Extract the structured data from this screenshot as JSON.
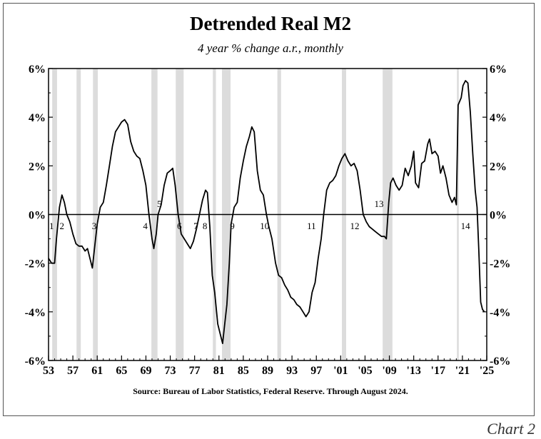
{
  "chart_data": {
    "type": "line",
    "title": "Detrended Real M2",
    "subtitle": "4 year % change a.r., monthly",
    "source": "Source: Bureau of Labor Statistics, Federal Reserve. Through August 2024.",
    "caption": "Chart 2",
    "xlim": [
      1953,
      2025
    ],
    "ylim": [
      -6,
      6
    ],
    "y_ticks": [
      6,
      4,
      2,
      0,
      -2,
      -4,
      -6
    ],
    "y_tick_labels": [
      "6%",
      "4%",
      "2%",
      "0%",
      "-2%",
      "-4%",
      "-6%"
    ],
    "x_ticks": [
      1953,
      1957,
      1961,
      1965,
      1969,
      1973,
      1977,
      1981,
      1985,
      1989,
      1993,
      1997,
      2001,
      2005,
      2009,
      2013,
      2017,
      2021,
      2025
    ],
    "x_tick_labels": [
      "53",
      "57",
      "61",
      "65",
      "69",
      "73",
      "77",
      "81",
      "85",
      "89",
      "93",
      "97",
      "'01",
      "'05",
      "'09",
      "'13",
      "'17",
      "'21",
      "'25"
    ],
    "recessions": [
      {
        "start": 1953.6,
        "end": 1954.4
      },
      {
        "start": 1957.6,
        "end": 1958.3
      },
      {
        "start": 1960.3,
        "end": 1961.1
      },
      {
        "start": 1969.9,
        "end": 1970.9
      },
      {
        "start": 1973.9,
        "end": 1975.2
      },
      {
        "start": 1980.0,
        "end": 1980.5
      },
      {
        "start": 1981.5,
        "end": 1982.9
      },
      {
        "start": 1990.6,
        "end": 1991.2
      },
      {
        "start": 2001.2,
        "end": 2001.9
      },
      {
        "start": 2007.9,
        "end": 2009.5
      },
      {
        "start": 2020.1,
        "end": 2020.4
      }
    ],
    "crossing_labels": [
      {
        "label": "1",
        "x": 1953.5,
        "y": -0.25
      },
      {
        "label": "2",
        "x": 1955.2,
        "y": -0.25
      },
      {
        "label": "3",
        "x": 1960.5,
        "y": -0.25
      },
      {
        "label": "4",
        "x": 1968.9,
        "y": -0.25
      },
      {
        "label": "5",
        "x": 1971.2,
        "y": 0.25
      },
      {
        "label": "6",
        "x": 1974.5,
        "y": -0.25
      },
      {
        "label": "7",
        "x": 1977.2,
        "y": -0.25
      },
      {
        "label": "8",
        "x": 1978.7,
        "y": -0.25
      },
      {
        "label": "9",
        "x": 1983.2,
        "y": -0.25
      },
      {
        "label": "10",
        "x": 1988.5,
        "y": -0.25
      },
      {
        "label": "11",
        "x": 1996.2,
        "y": -0.25
      },
      {
        "label": "12",
        "x": 2003.3,
        "y": -0.25
      },
      {
        "label": "13",
        "x": 2007.3,
        "y": 0.25
      },
      {
        "label": "14",
        "x": 2021.5,
        "y": -0.25
      }
    ],
    "series": [
      {
        "name": "Detrended Real M2",
        "points": [
          [
            1953.0,
            -1.8
          ],
          [
            1953.5,
            -2.0
          ],
          [
            1954.0,
            -2.0
          ],
          [
            1954.3,
            -1.0
          ],
          [
            1954.8,
            0.3
          ],
          [
            1955.2,
            0.8
          ],
          [
            1955.6,
            0.5
          ],
          [
            1956.0,
            0.0
          ],
          [
            1956.5,
            -0.3
          ],
          [
            1957.0,
            -0.8
          ],
          [
            1957.5,
            -1.2
          ],
          [
            1958.0,
            -1.3
          ],
          [
            1958.5,
            -1.3
          ],
          [
            1959.0,
            -1.5
          ],
          [
            1959.4,
            -1.4
          ],
          [
            1959.8,
            -1.8
          ],
          [
            1960.2,
            -2.2
          ],
          [
            1960.5,
            -1.5
          ],
          [
            1961.0,
            -0.4
          ],
          [
            1961.5,
            0.3
          ],
          [
            1962.0,
            0.5
          ],
          [
            1962.5,
            1.2
          ],
          [
            1963.0,
            2.0
          ],
          [
            1963.5,
            2.8
          ],
          [
            1964.0,
            3.4
          ],
          [
            1964.5,
            3.6
          ],
          [
            1965.0,
            3.8
          ],
          [
            1965.5,
            3.9
          ],
          [
            1966.0,
            3.7
          ],
          [
            1966.5,
            3.0
          ],
          [
            1967.0,
            2.6
          ],
          [
            1967.5,
            2.4
          ],
          [
            1968.0,
            2.3
          ],
          [
            1968.5,
            1.8
          ],
          [
            1969.0,
            1.2
          ],
          [
            1969.5,
            0.0
          ],
          [
            1970.0,
            -1.0
          ],
          [
            1970.3,
            -1.4
          ],
          [
            1970.7,
            -0.8
          ],
          [
            1971.0,
            0.0
          ],
          [
            1971.5,
            0.4
          ],
          [
            1972.0,
            1.2
          ],
          [
            1972.5,
            1.7
          ],
          [
            1973.0,
            1.8
          ],
          [
            1973.4,
            1.9
          ],
          [
            1973.8,
            1.2
          ],
          [
            1974.3,
            0.0
          ],
          [
            1974.8,
            -0.8
          ],
          [
            1975.3,
            -1.0
          ],
          [
            1975.8,
            -1.2
          ],
          [
            1976.3,
            -1.4
          ],
          [
            1976.8,
            -1.1
          ],
          [
            1977.3,
            -0.6
          ],
          [
            1977.8,
            0.0
          ],
          [
            1978.3,
            0.6
          ],
          [
            1978.8,
            1.0
          ],
          [
            1979.1,
            0.9
          ],
          [
            1979.5,
            -0.5
          ],
          [
            1979.9,
            -2.5
          ],
          [
            1980.3,
            -3.2
          ],
          [
            1980.8,
            -4.5
          ],
          [
            1981.3,
            -5.0
          ],
          [
            1981.6,
            -5.3
          ],
          [
            1981.9,
            -4.6
          ],
          [
            1982.3,
            -3.7
          ],
          [
            1982.7,
            -2.0
          ],
          [
            1983.0,
            -0.4
          ],
          [
            1983.5,
            0.3
          ],
          [
            1984.0,
            0.5
          ],
          [
            1984.5,
            1.5
          ],
          [
            1985.0,
            2.2
          ],
          [
            1985.5,
            2.8
          ],
          [
            1986.0,
            3.2
          ],
          [
            1986.4,
            3.6
          ],
          [
            1986.8,
            3.4
          ],
          [
            1987.3,
            1.8
          ],
          [
            1987.8,
            1.0
          ],
          [
            1988.3,
            0.8
          ],
          [
            1988.8,
            0.0
          ],
          [
            1989.2,
            -0.5
          ],
          [
            1989.7,
            -1.0
          ],
          [
            1990.3,
            -2.0
          ],
          [
            1990.8,
            -2.5
          ],
          [
            1991.3,
            -2.6
          ],
          [
            1991.8,
            -2.9
          ],
          [
            1992.3,
            -3.1
          ],
          [
            1992.8,
            -3.4
          ],
          [
            1993.3,
            -3.5
          ],
          [
            1993.8,
            -3.7
          ],
          [
            1994.3,
            -3.8
          ],
          [
            1994.8,
            -4.0
          ],
          [
            1995.3,
            -4.2
          ],
          [
            1995.8,
            -4.0
          ],
          [
            1996.3,
            -3.2
          ],
          [
            1996.8,
            -2.8
          ],
          [
            1997.3,
            -1.8
          ],
          [
            1997.8,
            -1.0
          ],
          [
            1998.2,
            0.0
          ],
          [
            1998.7,
            1.0
          ],
          [
            1999.2,
            1.3
          ],
          [
            1999.7,
            1.4
          ],
          [
            2000.2,
            1.6
          ],
          [
            2000.7,
            2.0
          ],
          [
            2001.2,
            2.3
          ],
          [
            2001.7,
            2.5
          ],
          [
            2002.2,
            2.2
          ],
          [
            2002.7,
            2.0
          ],
          [
            2003.2,
            2.1
          ],
          [
            2003.7,
            1.8
          ],
          [
            2004.2,
            1.0
          ],
          [
            2004.7,
            0.0
          ],
          [
            2005.2,
            -0.3
          ],
          [
            2005.7,
            -0.5
          ],
          [
            2006.2,
            -0.6
          ],
          [
            2006.7,
            -0.7
          ],
          [
            2007.2,
            -0.8
          ],
          [
            2007.7,
            -0.9
          ],
          [
            2008.2,
            -0.9
          ],
          [
            2008.5,
            -1.0
          ],
          [
            2008.9,
            0.5
          ],
          [
            2009.2,
            1.3
          ],
          [
            2009.6,
            1.5
          ],
          [
            2010.1,
            1.2
          ],
          [
            2010.6,
            1.0
          ],
          [
            2011.1,
            1.2
          ],
          [
            2011.6,
            1.9
          ],
          [
            2012.1,
            1.6
          ],
          [
            2012.6,
            2.0
          ],
          [
            2013.0,
            2.6
          ],
          [
            2013.3,
            1.3
          ],
          [
            2013.8,
            1.1
          ],
          [
            2014.3,
            2.1
          ],
          [
            2014.8,
            2.2
          ],
          [
            2015.3,
            2.9
          ],
          [
            2015.6,
            3.1
          ],
          [
            2016.0,
            2.5
          ],
          [
            2016.5,
            2.6
          ],
          [
            2017.0,
            2.4
          ],
          [
            2017.4,
            1.7
          ],
          [
            2017.8,
            2.0
          ],
          [
            2018.3,
            1.5
          ],
          [
            2018.8,
            0.8
          ],
          [
            2019.3,
            0.5
          ],
          [
            2019.7,
            0.7
          ],
          [
            2020.0,
            0.4
          ],
          [
            2020.3,
            4.5
          ],
          [
            2020.8,
            4.8
          ],
          [
            2021.1,
            5.3
          ],
          [
            2021.5,
            5.5
          ],
          [
            2021.9,
            5.4
          ],
          [
            2022.3,
            4.2
          ],
          [
            2022.7,
            2.5
          ],
          [
            2023.1,
            1.0
          ],
          [
            2023.4,
            0.3
          ],
          [
            2023.7,
            -1.5
          ],
          [
            2024.0,
            -3.6
          ],
          [
            2024.3,
            -3.9
          ],
          [
            2024.6,
            -4.0
          ]
        ]
      }
    ]
  }
}
